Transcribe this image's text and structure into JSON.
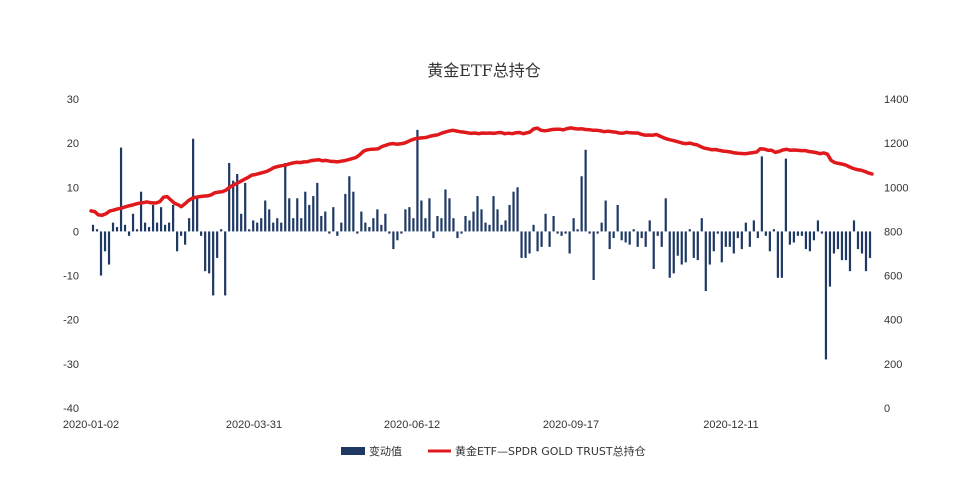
{
  "chart_data": {
    "type": "bar+line",
    "title": "黄金ETF总持仓",
    "x_ticks": [
      "2020-01-02",
      "2020-03-31",
      "2020-06-12",
      "2020-09-17",
      "2020-12-11"
    ],
    "y_left": {
      "min": -40,
      "max": 30,
      "ticks": [
        "30",
        "20",
        "10",
        "0",
        "-10",
        "-20",
        "-30",
        "-40"
      ]
    },
    "y_right": {
      "min": 0,
      "max": 1400,
      "ticks": [
        "1400",
        "1200",
        "1000",
        "800",
        "600",
        "400",
        "200",
        "0"
      ]
    },
    "grid": false,
    "legend_position": "bottom",
    "series": [
      {
        "name": "变动值",
        "kind": "bar",
        "axis": "left",
        "color": "#1f3864",
        "values": [
          1.5,
          0.5,
          -10.0,
          -4.5,
          -7.5,
          2.0,
          1.0,
          19.0,
          1.5,
          -1.0,
          4.0,
          0.5,
          9.0,
          2.0,
          1.0,
          6.0,
          2.0,
          5.5,
          1.5,
          2.0,
          6.0,
          -4.5,
          -1.0,
          -3.0,
          3.0,
          21.0,
          7.5,
          -1.0,
          -9.0,
          -9.5,
          -14.5,
          -6.0,
          0.5,
          -14.5,
          15.5,
          11.5,
          13.0,
          4.0,
          11.0,
          0.5,
          2.5,
          2.0,
          3.0,
          7.0,
          5.0,
          2.0,
          3.0,
          2.0,
          15.5,
          7.5,
          3.0,
          7.5,
          3.0,
          9.0,
          6.0,
          8.0,
          11.0,
          3.5,
          4.5,
          -0.5,
          5.5,
          -1.0,
          2.0,
          8.5,
          12.5,
          9.0,
          -0.5,
          4.5,
          2.0,
          1.0,
          3.0,
          5.0,
          1.5,
          4.0,
          -0.5,
          -4.0,
          -2.0,
          -0.5,
          5.0,
          5.5,
          3.0,
          23.0,
          7.0,
          3.0,
          7.5,
          -1.5,
          3.5,
          3.0,
          9.5,
          7.5,
          3.0,
          -1.5,
          -0.5,
          3.5,
          2.5,
          4.5,
          8.0,
          5.0,
          2.0,
          1.5,
          8.0,
          5.0,
          1.5,
          2.5,
          6.0,
          9.0,
          10.0,
          -6.0,
          -6.0,
          -5.0,
          1.5,
          -4.5,
          -3.5,
          4.0,
          -3.5,
          3.5,
          -0.5,
          -1.0,
          -0.5,
          -5.0,
          3.0,
          0.5,
          12.5,
          18.5,
          -0.5,
          -11.0,
          -0.5,
          2.0,
          7.0,
          -4.0,
          -1.5,
          6.0,
          -2.0,
          -2.5,
          -3.0,
          0.5,
          -3.5,
          -1.5,
          -3.5,
          2.5,
          -8.5,
          -1.0,
          -3.5,
          7.5,
          -10.5,
          -9.5,
          -5.5,
          -7.5,
          -7.0,
          0.5,
          -6.0,
          -6.5,
          3.0,
          -13.5,
          -7.5,
          -4.5,
          -0.5,
          -7.0,
          -3.5,
          -3.5,
          -5.0,
          -1.5,
          -4.0,
          2.0,
          -3.5,
          2.5,
          -1.5,
          17.0,
          -1.0,
          -4.5,
          0.5,
          -10.5,
          -10.5,
          16.5,
          -3.0,
          -2.5,
          -1.0,
          -1.0,
          -4.0,
          -4.5,
          -2.0,
          2.5,
          -0.5,
          -29.0,
          -12.5,
          -5.0,
          -4.0,
          -6.5,
          -6.5,
          -9.0,
          2.5,
          -4.0,
          -5.0,
          -9.0,
          -6.0
        ]
      },
      {
        "name": "黄金ETF—SPDR GOLD TRUST总持仓",
        "kind": "line",
        "axis": "right",
        "color": "#e0191c",
        "points": [
          [
            0,
            893
          ],
          [
            4,
            890
          ],
          [
            8,
            875
          ],
          [
            12,
            873
          ],
          [
            16,
            880
          ],
          [
            20,
            892
          ],
          [
            24,
            896
          ],
          [
            28,
            901
          ],
          [
            32,
            905
          ],
          [
            36,
            910
          ],
          [
            40,
            915
          ],
          [
            44,
            919
          ],
          [
            48,
            924
          ],
          [
            52,
            928
          ],
          [
            56,
            930
          ],
          [
            60,
            934
          ],
          [
            64,
            930
          ],
          [
            70,
            929
          ],
          [
            74,
            935
          ],
          [
            78,
            955
          ],
          [
            82,
            958
          ],
          [
            86,
            942
          ],
          [
            90,
            927
          ],
          [
            94,
            920
          ],
          [
            97,
            912
          ],
          [
            101,
            925
          ],
          [
            105,
            940
          ],
          [
            109,
            950
          ],
          [
            113,
            955
          ],
          [
            117,
            958
          ],
          [
            121,
            960
          ],
          [
            125,
            961
          ],
          [
            129,
            965
          ],
          [
            133,
            975
          ],
          [
            137,
            978
          ],
          [
            141,
            980
          ],
          [
            145,
            987
          ],
          [
            149,
            1000
          ],
          [
            153,
            1010
          ],
          [
            157,
            1018
          ],
          [
            161,
            1027
          ],
          [
            165,
            1036
          ],
          [
            169,
            1045
          ],
          [
            173,
            1055
          ],
          [
            177,
            1058
          ],
          [
            181,
            1063
          ],
          [
            185,
            1067
          ],
          [
            189,
            1072
          ],
          [
            193,
            1080
          ],
          [
            197,
            1090
          ],
          [
            201,
            1094
          ],
          [
            205,
            1098
          ],
          [
            209,
            1100
          ],
          [
            213,
            1106
          ],
          [
            217,
            1110
          ],
          [
            221,
            1113
          ],
          [
            225,
            1112
          ],
          [
            229,
            1115
          ],
          [
            233,
            1116
          ],
          [
            237,
            1121
          ],
          [
            241,
            1123
          ],
          [
            245,
            1125
          ],
          [
            249,
            1120
          ],
          [
            253,
            1122
          ],
          [
            257,
            1118
          ],
          [
            261,
            1117
          ],
          [
            265,
            1115
          ],
          [
            269,
            1118
          ],
          [
            273,
            1121
          ],
          [
            277,
            1125
          ],
          [
            281,
            1130
          ],
          [
            285,
            1135
          ],
          [
            289,
            1147
          ],
          [
            293,
            1163
          ],
          [
            297,
            1170
          ],
          [
            301,
            1172
          ],
          [
            305,
            1173
          ],
          [
            309,
            1175
          ],
          [
            313,
            1185
          ],
          [
            317,
            1190
          ],
          [
            321,
            1196
          ],
          [
            325,
            1198
          ],
          [
            329,
            1195
          ],
          [
            333,
            1197
          ],
          [
            337,
            1200
          ],
          [
            341,
            1207
          ],
          [
            345,
            1215
          ],
          [
            349,
            1220
          ],
          [
            353,
            1223
          ],
          [
            357,
            1224
          ],
          [
            361,
            1226
          ],
          [
            365,
            1232
          ],
          [
            369,
            1235
          ],
          [
            373,
            1238
          ],
          [
            377,
            1245
          ],
          [
            381,
            1250
          ],
          [
            385,
            1255
          ],
          [
            389,
            1258
          ],
          [
            393,
            1255
          ],
          [
            397,
            1252
          ],
          [
            401,
            1250
          ],
          [
            405,
            1247
          ],
          [
            409,
            1244
          ],
          [
            413,
            1246
          ],
          [
            417,
            1243
          ],
          [
            421,
            1246
          ],
          [
            425,
            1245
          ],
          [
            429,
            1246
          ],
          [
            433,
            1244
          ],
          [
            437,
            1247
          ],
          [
            441,
            1248
          ],
          [
            445,
            1243
          ],
          [
            449,
            1245
          ],
          [
            453,
            1243
          ],
          [
            457,
            1247
          ],
          [
            461,
            1248
          ],
          [
            465,
            1243
          ],
          [
            468,
            1246
          ],
          [
            472,
            1250
          ],
          [
            476,
            1264
          ],
          [
            480,
            1268
          ],
          [
            484,
            1258
          ],
          [
            488,
            1256
          ],
          [
            492,
            1258
          ],
          [
            496,
            1262
          ],
          [
            500,
            1263
          ],
          [
            504,
            1263
          ],
          [
            508,
            1260
          ],
          [
            512,
            1266
          ],
          [
            516,
            1269
          ],
          [
            520,
            1266
          ],
          [
            524,
            1264
          ],
          [
            528,
            1265
          ],
          [
            532,
            1262
          ],
          [
            536,
            1261
          ],
          [
            540,
            1258
          ],
          [
            544,
            1258
          ],
          [
            548,
            1256
          ],
          [
            552,
            1252
          ],
          [
            556,
            1254
          ],
          [
            560,
            1252
          ],
          [
            564,
            1250
          ],
          [
            568,
            1246
          ],
          [
            572,
            1245
          ],
          [
            576,
            1249
          ],
          [
            580,
            1247
          ],
          [
            584,
            1246
          ],
          [
            588,
            1246
          ],
          [
            592,
            1240
          ],
          [
            596,
            1236
          ],
          [
            600,
            1237
          ],
          [
            604,
            1236
          ],
          [
            608,
            1239
          ],
          [
            612,
            1232
          ],
          [
            616,
            1224
          ],
          [
            620,
            1218
          ],
          [
            624,
            1214
          ],
          [
            628,
            1210
          ],
          [
            632,
            1205
          ],
          [
            636,
            1200
          ],
          [
            640,
            1198
          ],
          [
            644,
            1200
          ],
          [
            648,
            1195
          ],
          [
            652,
            1192
          ],
          [
            656,
            1184
          ],
          [
            660,
            1177
          ],
          [
            664,
            1174
          ],
          [
            668,
            1170
          ],
          [
            672,
            1171
          ],
          [
            676,
            1167
          ],
          [
            680,
            1164
          ],
          [
            684,
            1162
          ],
          [
            688,
            1160
          ],
          [
            692,
            1156
          ],
          [
            696,
            1154
          ],
          [
            700,
            1153
          ],
          [
            704,
            1152
          ],
          [
            708,
            1155
          ],
          [
            712,
            1157
          ],
          [
            716,
            1160
          ],
          [
            720,
            1175
          ],
          [
            724,
            1173
          ],
          [
            728,
            1168
          ],
          [
            732,
            1168
          ],
          [
            736,
            1158
          ],
          [
            740,
            1162
          ],
          [
            744,
            1169
          ],
          [
            748,
            1172
          ],
          [
            752,
            1168
          ],
          [
            756,
            1169
          ],
          [
            760,
            1168
          ],
          [
            764,
            1166
          ],
          [
            768,
            1166
          ],
          [
            772,
            1162
          ],
          [
            776,
            1160
          ],
          [
            780,
            1157
          ],
          [
            784,
            1152
          ],
          [
            788,
            1156
          ],
          [
            792,
            1150
          ],
          [
            796,
            1122
          ],
          [
            800,
            1112
          ],
          [
            804,
            1108
          ],
          [
            808,
            1105
          ],
          [
            812,
            1100
          ],
          [
            816,
            1092
          ],
          [
            820,
            1085
          ],
          [
            824,
            1080
          ],
          [
            828,
            1078
          ],
          [
            832,
            1072
          ],
          [
            836,
            1065
          ],
          [
            840,
            1060
          ]
        ]
      }
    ]
  }
}
